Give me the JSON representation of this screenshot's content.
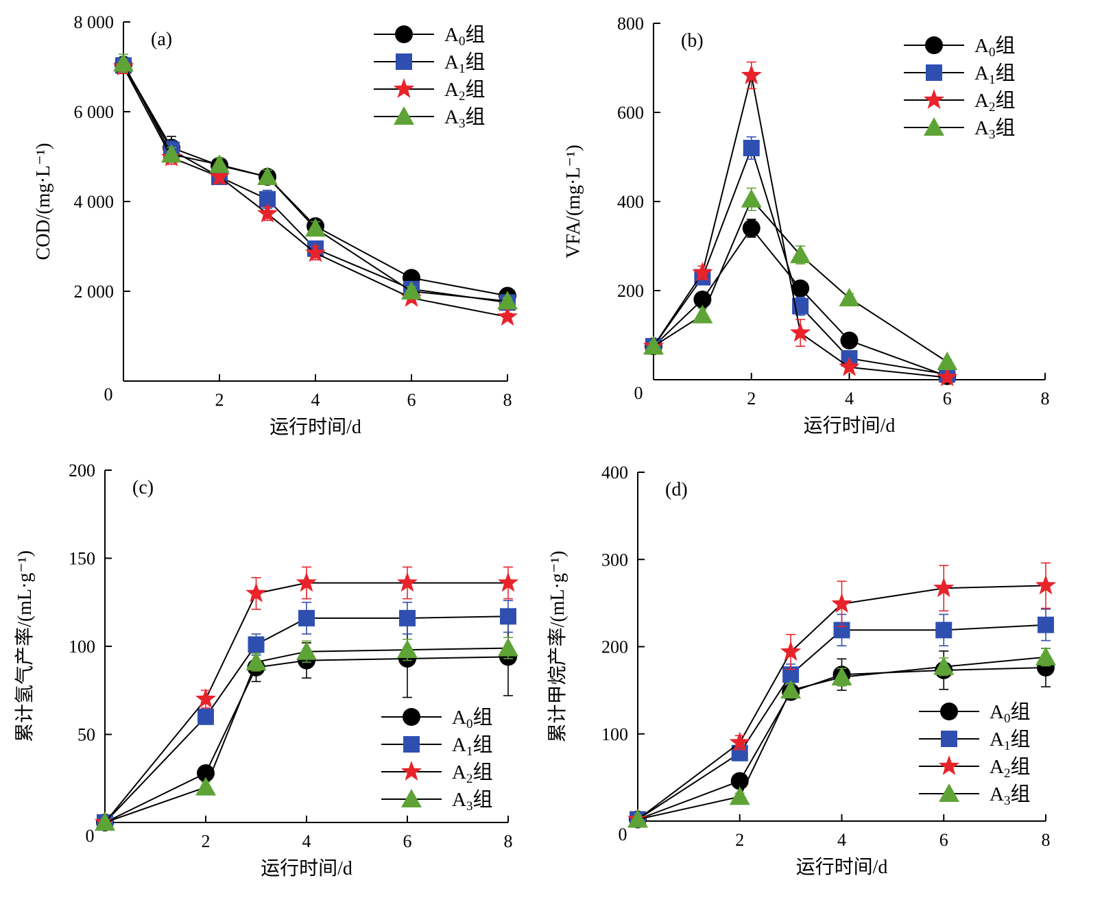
{
  "legend_suffix": "组",
  "colors": {
    "A0": "#000000",
    "A1": "#2f4fb0",
    "A2": "#e8232a",
    "A3": "#5ea336",
    "line": "#000000"
  },
  "chart_data": [
    {
      "id": "a",
      "type": "line",
      "panel_label": "(a)",
      "xlabel": "运行时间/d",
      "ylabel": "COD/(mg·L⁻¹)",
      "xlim": [
        0,
        8
      ],
      "ylim": [
        0,
        8000
      ],
      "xticks": [
        2,
        4,
        6,
        8
      ],
      "yticks": [
        2000,
        4000,
        6000,
        8000
      ],
      "xtick_labels": [
        "2",
        "4",
        "6",
        "8"
      ],
      "ytick_labels": [
        "2 000",
        "4 000",
        "6 000",
        "8 000"
      ],
      "origin_label": "0",
      "legend_position": "top-right",
      "x": [
        0,
        1,
        2,
        3,
        4,
        6,
        8
      ],
      "series": [
        {
          "name": "A",
          "sub": "0",
          "marker": "circle",
          "values": [
            7050,
            5200,
            4800,
            4550,
            3450,
            2300,
            1900
          ],
          "errors": [
            150,
            250,
            120,
            120,
            150,
            100,
            80
          ]
        },
        {
          "name": "A",
          "sub": "1",
          "marker": "square",
          "values": [
            7030,
            5150,
            4550,
            4050,
            2950,
            2050,
            1750
          ],
          "errors": [
            150,
            200,
            120,
            200,
            150,
            100,
            80
          ]
        },
        {
          "name": "A",
          "sub": "2",
          "marker": "star",
          "values": [
            7000,
            4980,
            4550,
            3730,
            2850,
            1850,
            1430
          ],
          "errors": [
            150,
            150,
            150,
            150,
            150,
            100,
            80
          ]
        },
        {
          "name": "A",
          "sub": "3",
          "marker": "triangle",
          "values": [
            7080,
            5050,
            4820,
            4550,
            3400,
            2000,
            1780
          ],
          "errors": [
            200,
            150,
            150,
            150,
            150,
            100,
            80
          ]
        }
      ]
    },
    {
      "id": "b",
      "type": "line",
      "panel_label": "(b)",
      "xlabel": "运行时间/d",
      "ylabel": "VFA/(mg·L⁻¹)",
      "xlim": [
        0,
        8
      ],
      "ylim": [
        0,
        800
      ],
      "xticks": [
        2,
        4,
        6,
        8
      ],
      "yticks": [
        200,
        400,
        600,
        800
      ],
      "xtick_labels": [
        "2",
        "4",
        "6",
        "8"
      ],
      "ytick_labels": [
        "200",
        "400",
        "600",
        "800"
      ],
      "origin_label": "0",
      "legend_position": "top-right",
      "x": [
        0,
        1,
        2,
        3,
        4,
        6
      ],
      "series": [
        {
          "name": "A",
          "sub": "0",
          "marker": "circle",
          "values": [
            75,
            180,
            340,
            205,
            88,
            8
          ],
          "errors": [
            10,
            15,
            20,
            15,
            10,
            5
          ]
        },
        {
          "name": "A",
          "sub": "1",
          "marker": "square",
          "values": [
            75,
            230,
            520,
            165,
            48,
            12
          ],
          "errors": [
            10,
            15,
            25,
            20,
            10,
            5
          ]
        },
        {
          "name": "A",
          "sub": "2",
          "marker": "star",
          "values": [
            75,
            240,
            683,
            105,
            28,
            5
          ],
          "errors": [
            10,
            15,
            30,
            30,
            10,
            5
          ]
        },
        {
          "name": "A",
          "sub": "3",
          "marker": "triangle",
          "values": [
            75,
            145,
            405,
            280,
            183,
            40
          ],
          "errors": [
            10,
            15,
            25,
            20,
            10,
            5
          ]
        }
      ]
    },
    {
      "id": "c",
      "type": "line",
      "panel_label": "(c)",
      "xlabel": "运行时间/d",
      "ylabel": "累计氢气产率/(mL·g⁻¹)",
      "xlim": [
        0,
        8
      ],
      "ylim": [
        0,
        200
      ],
      "xticks": [
        2,
        4,
        6,
        8
      ],
      "yticks": [
        50,
        100,
        150,
        200
      ],
      "xtick_labels": [
        "2",
        "4",
        "6",
        "8"
      ],
      "ytick_labels": [
        "50",
        "100",
        "150",
        "200"
      ],
      "origin_label": "0",
      "legend_position": "bottom-right",
      "x": [
        0,
        2,
        3,
        4,
        6,
        8
      ],
      "series": [
        {
          "name": "A",
          "sub": "0",
          "marker": "circle",
          "values": [
            0,
            28,
            88,
            92,
            93,
            94
          ],
          "errors": [
            1,
            3,
            8,
            10,
            22,
            22
          ]
        },
        {
          "name": "A",
          "sub": "1",
          "marker": "square",
          "values": [
            0,
            60,
            101,
            116,
            116,
            117
          ],
          "errors": [
            1,
            4,
            6,
            9,
            9,
            9
          ]
        },
        {
          "name": "A",
          "sub": "2",
          "marker": "star",
          "values": [
            0,
            70,
            130,
            136,
            136,
            136
          ],
          "errors": [
            1,
            5,
            9,
            9,
            9,
            9
          ]
        },
        {
          "name": "A",
          "sub": "3",
          "marker": "triangle",
          "values": [
            0,
            20,
            91,
            97,
            98,
            99
          ],
          "errors": [
            1,
            3,
            5,
            6,
            6,
            6
          ]
        }
      ]
    },
    {
      "id": "d",
      "type": "line",
      "panel_label": "(d)",
      "xlabel": "运行时间/d",
      "ylabel": "累计甲烷产率/(mL·g⁻¹)",
      "xlim": [
        0,
        8
      ],
      "ylim": [
        0,
        400
      ],
      "xticks": [
        2,
        4,
        6,
        8
      ],
      "yticks": [
        100,
        200,
        300,
        400
      ],
      "xtick_labels": [
        "2",
        "4",
        "6",
        "8"
      ],
      "ytick_labels": [
        "100",
        "200",
        "300",
        "400"
      ],
      "origin_label": "0",
      "legend_position": "bottom-right",
      "x": [
        0,
        2,
        3,
        4,
        6,
        8
      ],
      "series": [
        {
          "name": "A",
          "sub": "0",
          "marker": "circle",
          "values": [
            2,
            46,
            148,
            168,
            173,
            176
          ],
          "errors": [
            1,
            4,
            8,
            18,
            22,
            22
          ]
        },
        {
          "name": "A",
          "sub": "1",
          "marker": "square",
          "values": [
            2,
            78,
            168,
            219,
            219,
            225
          ],
          "errors": [
            1,
            6,
            12,
            18,
            18,
            18
          ]
        },
        {
          "name": "A",
          "sub": "2",
          "marker": "star",
          "values": [
            2,
            90,
            194,
            249,
            267,
            270
          ],
          "errors": [
            1,
            8,
            20,
            26,
            26,
            26
          ]
        },
        {
          "name": "A",
          "sub": "3",
          "marker": "triangle",
          "values": [
            2,
            28,
            150,
            165,
            177,
            188
          ],
          "errors": [
            1,
            4,
            8,
            10,
            10,
            10
          ]
        }
      ]
    }
  ]
}
